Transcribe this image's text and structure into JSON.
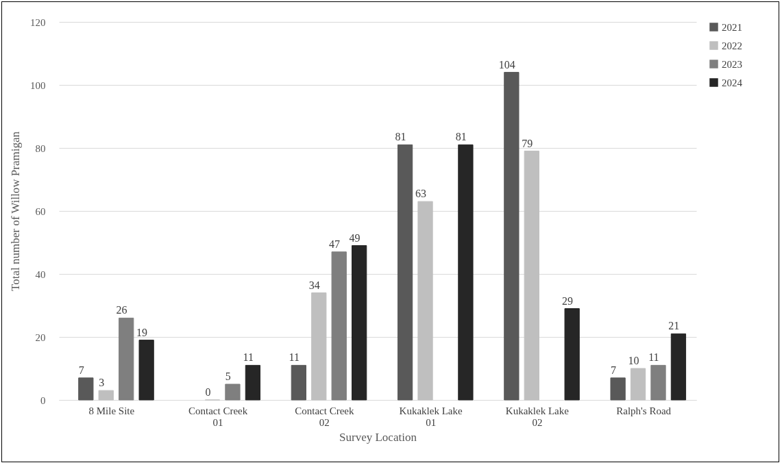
{
  "chart_data": {
    "type": "bar",
    "xlabel": "Survey Location",
    "ylabel": "Total number of Willow Pramigan",
    "categories": [
      "8 Mile Site",
      "Contact Creek 01",
      "Contact Creek 02",
      "Kukaklek Lake 01",
      "Kukaklek Lake 02",
      "Ralph's Road"
    ],
    "series": [
      {
        "name": "2021",
        "color": "#595959",
        "values": [
          7,
          null,
          11,
          81,
          104,
          7
        ]
      },
      {
        "name": "2022",
        "color": "#bfbfbf",
        "values": [
          3,
          0,
          34,
          63,
          79,
          10
        ]
      },
      {
        "name": "2023",
        "color": "#7f7f7f",
        "values": [
          26,
          5,
          47,
          null,
          null,
          11
        ]
      },
      {
        "name": "2024",
        "color": "#262626",
        "values": [
          19,
          11,
          49,
          81,
          29,
          21
        ]
      }
    ],
    "ylim": [
      0,
      120
    ],
    "yticks": [
      0,
      20,
      40,
      60,
      80,
      100,
      120
    ],
    "grid": "y",
    "legend": "right",
    "data_labels": true
  }
}
